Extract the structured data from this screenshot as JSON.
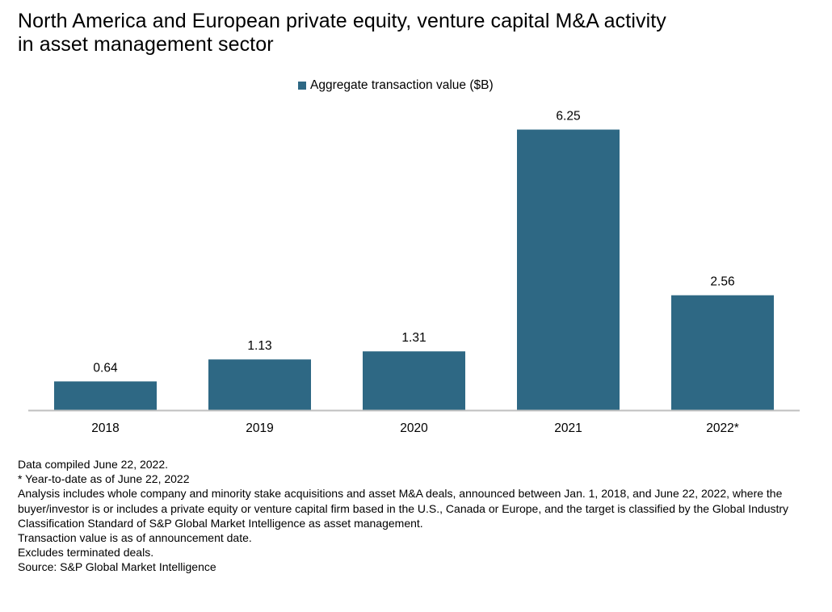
{
  "title_lines": [
    "North America and European private equity, venture capital M&A activity",
    "in asset management sector"
  ],
  "colors": {
    "bar": "#2e6884",
    "axis": "#bfbfbf",
    "text": "#000000"
  },
  "chart_data": {
    "type": "bar",
    "title": "North America and European private equity, venture capital M&A activity in asset management sector",
    "categories": [
      "2018",
      "2019",
      "2020",
      "2021",
      "2022*"
    ],
    "series": [
      {
        "name": "Aggregate transaction value ($B)",
        "values": [
          0.64,
          1.13,
          1.31,
          6.25,
          2.56
        ],
        "data_labels": [
          "0.64",
          "1.13",
          "1.31",
          "6.25",
          "2.56"
        ]
      }
    ],
    "ylim": [
      0,
      7
    ],
    "xlabel": "",
    "ylabel": "",
    "grid": false,
    "y_axis_visible": false,
    "legend_position": "top-center"
  },
  "notes": [
    "Data compiled June 22, 2022.",
    "* Year-to-date as of June 22, 2022",
    "Analysis includes whole company and minority stake acquisitions and asset M&A deals, announced between Jan. 1, 2018, and June 22, 2022, where the buyer/investor is or includes a private equity or venture capital firm based in the U.S., Canada or Europe, and the target is classified by the Global Industry Classification Standard of S&P Global Market Intelligence as asset management.",
    "Transaction value is as of announcement date.",
    "Excludes terminated deals.",
    "Source: S&P Global Market Intelligence"
  ]
}
